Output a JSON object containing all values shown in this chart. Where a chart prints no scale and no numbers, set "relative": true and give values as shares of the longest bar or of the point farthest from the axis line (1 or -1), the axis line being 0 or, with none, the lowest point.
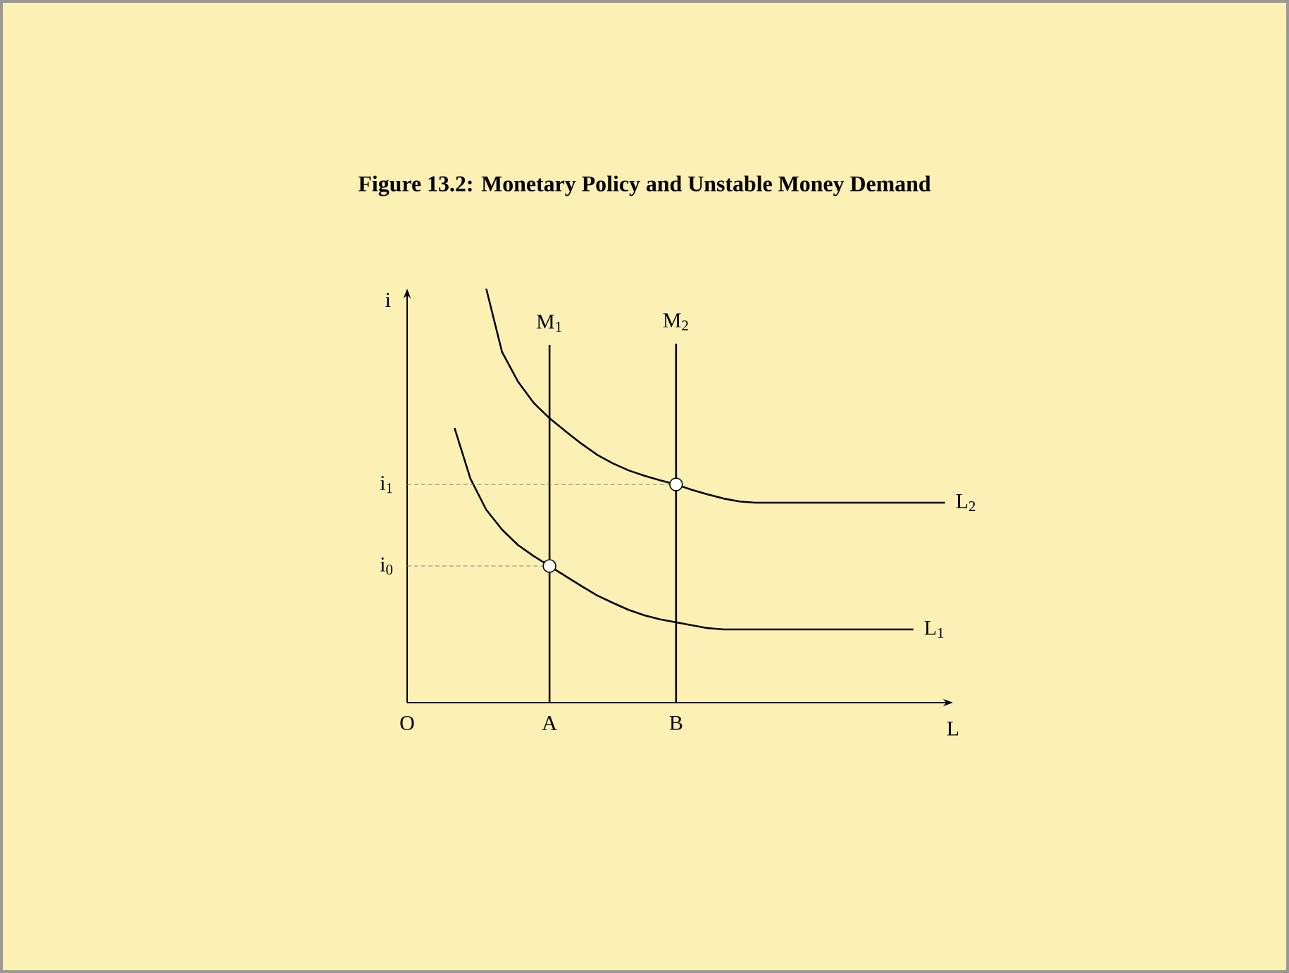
{
  "chart_data": {
    "type": "line",
    "title": "Figure 13.2: Monetary Policy and Unstable Money Demand",
    "xlabel": "L",
    "ylabel": "i",
    "relative": true,
    "categories": [
      "O",
      null,
      null,
      null,
      null,
      null,
      null,
      null,
      null,
      "A",
      null,
      null,
      null,
      null,
      null,
      null,
      null,
      "B",
      null,
      null,
      null,
      null,
      null,
      null,
      null,
      null,
      null,
      null,
      null,
      null,
      null,
      null,
      null,
      null,
      null
    ],
    "series": [
      {
        "name": "L$_{1}$",
        "color": "#000000",
        "values": [
          null,
          null,
          null,
          0.663,
          0.541,
          0.466,
          0.418,
          0.381,
          0.354,
          0.33,
          0.306,
          0.282,
          0.259,
          0.241,
          0.224,
          0.211,
          0.201,
          0.194,
          0.187,
          0.18,
          0.177,
          0.177,
          0.177,
          0.177,
          0.177,
          0.177,
          0.177,
          0.177,
          0.177,
          0.177,
          0.177,
          0.177,
          0.177,
          null,
          null
        ]
      },
      {
        "name": "L$_{2}$",
        "color": "#000000",
        "values": [
          null,
          null,
          null,
          null,
          null,
          1,
          0.847,
          0.776,
          0.724,
          0.687,
          0.656,
          0.626,
          0.599,
          0.578,
          0.561,
          0.548,
          0.537,
          0.527,
          0.514,
          0.503,
          0.493,
          0.486,
          0.483,
          0.483,
          0.483,
          0.483,
          0.483,
          0.483,
          0.483,
          0.483,
          0.483,
          0.483,
          0.483,
          0.483,
          0.483
        ]
      },
      {
        "name": "M$_{1}$",
        "color": "#000000",
        "x": [
          "A",
          "A"
        ],
        "values": [
          0,
          0.864
        ]
      },
      {
        "name": "M$_{2}$",
        "color": "#000000",
        "x": [
          "B",
          "B"
        ],
        "values": [
          0,
          0.867
        ]
      },
      {
        "color": "#808080",
        "line_style": "dashed",
        "x": [
          "O",
          "A"
        ],
        "values": [
          0.33,
          0.33
        ]
      },
      {
        "color": "#808080",
        "line_style": "dashed",
        "x": [
          "O",
          "B"
        ],
        "values": [
          0.527,
          0.527
        ]
      },
      {
        "type": "scatter",
        "color": "#000000",
        "marker": "circle",
        "x": [
          "A",
          "B"
        ],
        "values": [
          0.33,
          0.527
        ]
      }
    ],
    "annotations": [
      {
        "text": "i$_{0}$",
        "x": "O",
        "y": 0.33
      },
      {
        "text": "i$_{1}$",
        "x": "O",
        "y": 0.527
      }
    ]
  }
}
